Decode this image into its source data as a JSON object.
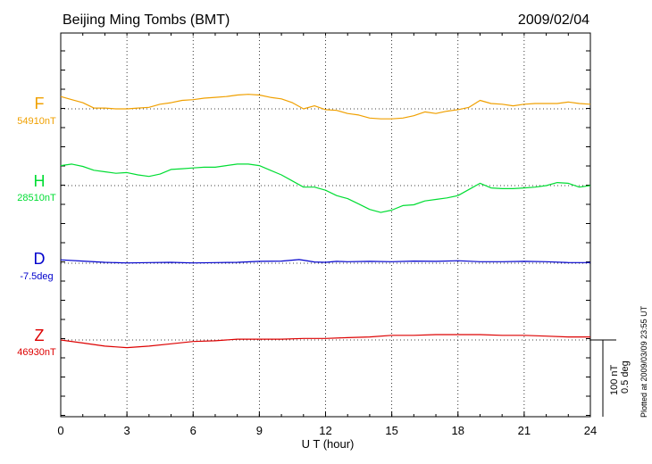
{
  "chart_data": {
    "type": "line",
    "title": "Beijing Ming Tombs (BMT)",
    "date": "2009/02/04",
    "xlabel": "U T (hour)",
    "xlim": [
      0,
      24
    ],
    "xticks": [
      "0",
      "3",
      "6",
      "9",
      "12",
      "15",
      "18",
      "21",
      "24"
    ],
    "grid": true,
    "scale_bar": {
      "primary": "100 nT",
      "secondary": "0.5 deg"
    },
    "plotted_note": "Plotted at 2009/03/09 23:55 UT",
    "series": [
      {
        "name": "F",
        "baseline_label": "54910nT",
        "color": "#f0a000",
        "baseline_nt": 54910,
        "x": [
          0,
          0.5,
          1,
          1.5,
          2,
          2.5,
          3,
          3.5,
          4,
          4.5,
          5,
          5.5,
          6,
          6.5,
          7,
          7.5,
          8,
          8.5,
          9,
          9.5,
          10,
          10.5,
          11,
          11.5,
          12,
          12.5,
          13,
          13.5,
          14,
          14.5,
          15,
          15.5,
          16,
          16.5,
          17,
          17.5,
          18,
          18.5,
          19,
          19.5,
          20,
          20.5,
          21,
          21.5,
          22,
          22.5,
          23,
          23.5,
          24
        ],
        "values": [
          54926,
          54922,
          54918,
          54911,
          54911,
          54910,
          54910,
          54911,
          54912,
          54916,
          54918,
          54921,
          54922,
          54924,
          54925,
          54926,
          54928,
          54929,
          54928,
          54925,
          54923,
          54918,
          54910,
          54914,
          54909,
          54908,
          54904,
          54902,
          54898,
          54897,
          54897,
          54898,
          54901,
          54906,
          54904,
          54907,
          54909,
          54912,
          54921,
          54917,
          54916,
          54914,
          54916,
          54917,
          54917,
          54917,
          54919,
          54917,
          54916
        ]
      },
      {
        "name": "H",
        "baseline_label": "28510nT",
        "color": "#00dd33",
        "baseline_nt": 28510,
        "x": [
          0,
          0.5,
          1,
          1.5,
          2,
          2.5,
          3,
          3.5,
          4,
          4.5,
          5,
          5.5,
          6,
          6.5,
          7,
          7.5,
          8,
          8.5,
          9,
          9.5,
          10,
          10.5,
          11,
          11.5,
          12,
          12.5,
          13,
          13.5,
          14,
          14.5,
          15,
          15.5,
          16,
          16.5,
          17,
          17.5,
          18,
          18.5,
          19,
          19.5,
          20,
          20.5,
          21,
          21.5,
          22,
          22.5,
          23,
          23.5,
          24
        ],
        "values": [
          28536,
          28538,
          28535,
          28530,
          28528,
          28526,
          28527,
          28524,
          28522,
          28525,
          28531,
          28532,
          28533,
          28534,
          28534,
          28536,
          28538,
          28538,
          28536,
          28530,
          28524,
          28516,
          28508,
          28508,
          28504,
          28497,
          28493,
          28486,
          28479,
          28475,
          28478,
          28484,
          28485,
          28490,
          28492,
          28494,
          28497,
          28505,
          28513,
          28507,
          28506,
          28506,
          28507,
          28508,
          28510,
          28514,
          28513,
          28508,
          28510
        ]
      },
      {
        "name": "D",
        "baseline_label": "-7.5deg",
        "color": "#0000cc",
        "baseline_deg": -7.5,
        "x": [
          0,
          1,
          2,
          3,
          4,
          5,
          6,
          7,
          8,
          9,
          10,
          10.8,
          11,
          11.5,
          12,
          12.5,
          13,
          14,
          15,
          16,
          17,
          18,
          19,
          20,
          21,
          22,
          23,
          24
        ],
        "values": [
          -7.478,
          -7.486,
          -7.494,
          -7.498,
          -7.496,
          -7.494,
          -7.498,
          -7.496,
          -7.494,
          -7.488,
          -7.486,
          -7.476,
          -7.48,
          -7.492,
          -7.494,
          -7.488,
          -7.49,
          -7.488,
          -7.49,
          -7.486,
          -7.488,
          -7.484,
          -7.49,
          -7.49,
          -7.488,
          -7.49,
          -7.496,
          -7.496
        ]
      },
      {
        "name": "Z",
        "baseline_label": "46930nT",
        "color": "#dd0000",
        "baseline_nt": 46930,
        "x": [
          0,
          1,
          2,
          3,
          4,
          5,
          6,
          7,
          8,
          9,
          10,
          11,
          12,
          13,
          14,
          15,
          16,
          17,
          18,
          19,
          20,
          21,
          22,
          23,
          24
        ],
        "values": [
          46930,
          46926,
          46922,
          46920,
          46922,
          46925,
          46928,
          46929,
          46931,
          46931,
          46931,
          46932,
          46932,
          46933,
          46934,
          46936,
          46936,
          46937,
          46937,
          46937,
          46936,
          46936,
          46935,
          46934,
          46934
        ]
      }
    ]
  }
}
